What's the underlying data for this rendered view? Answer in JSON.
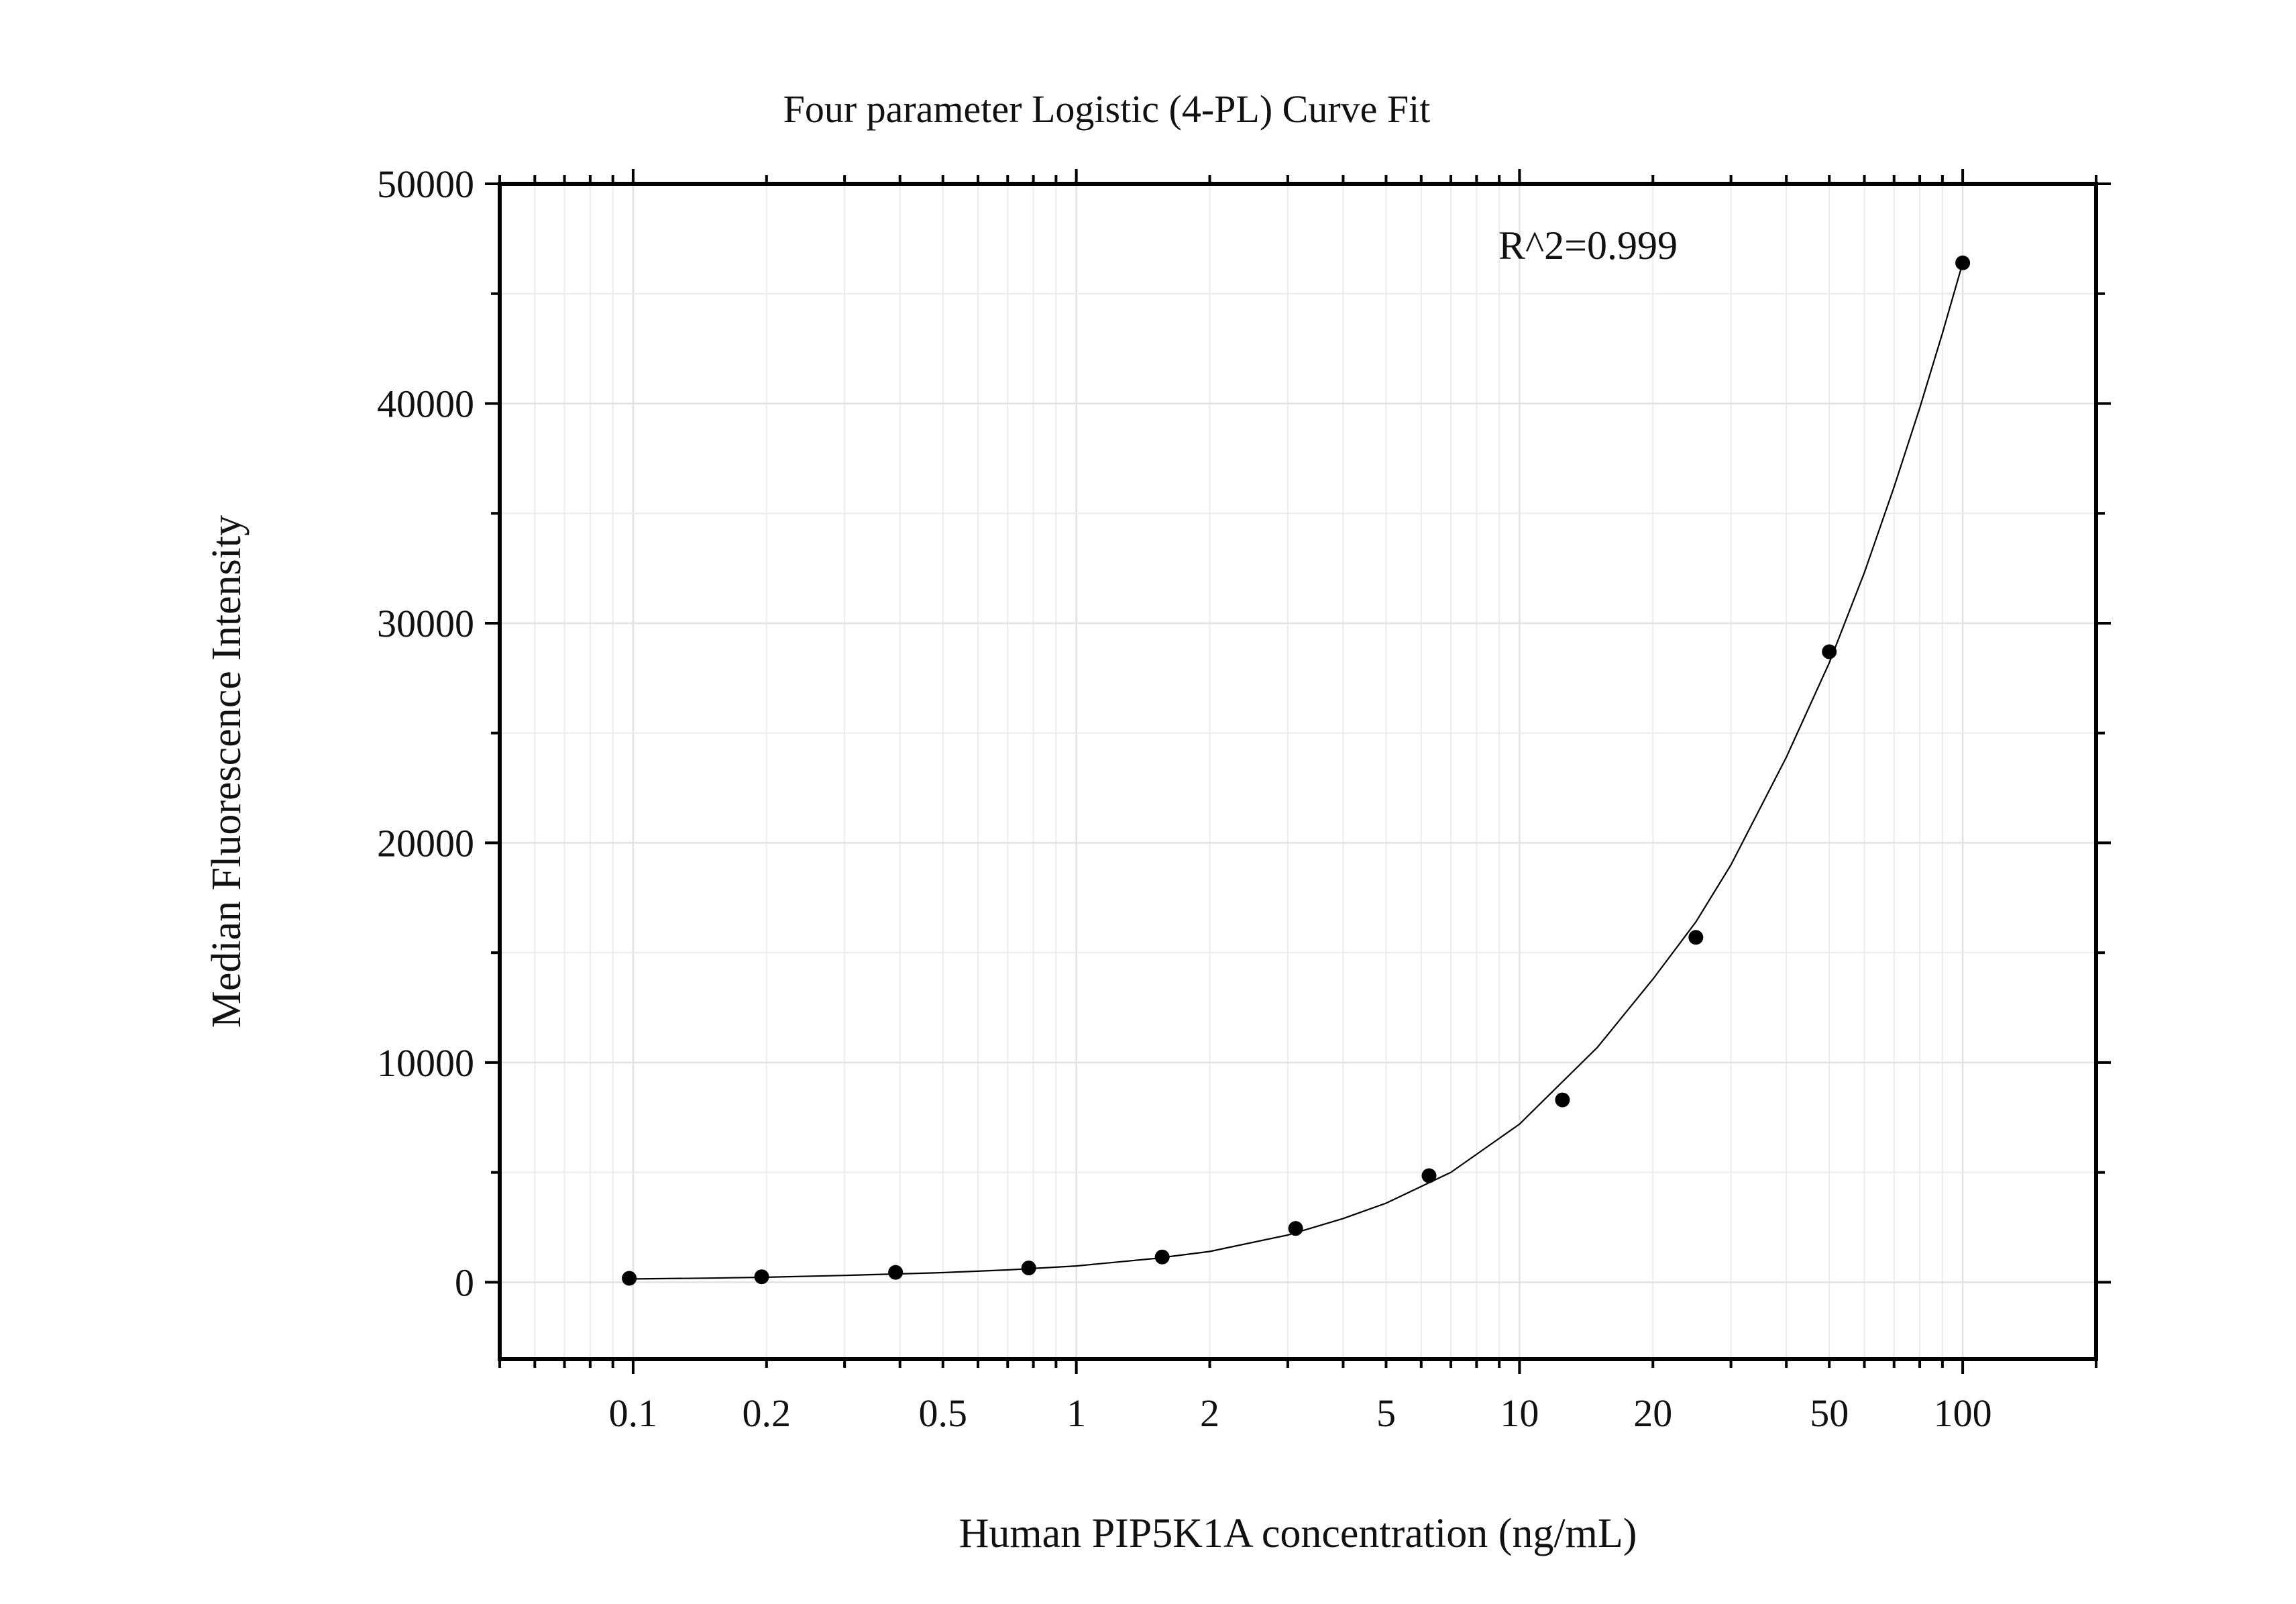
{
  "chart_data": {
    "type": "scatter",
    "title": "Four parameter Logistic (4-PL) Curve Fit",
    "xlabel": "Human PIP5K1A concentration (ng/mL)",
    "ylabel": "Median Fluorescence Intensity",
    "annotation": "R^2=0.999",
    "x_scale": "log",
    "xlim": [
      0.05,
      200
    ],
    "ylim": [
      -3500,
      50000
    ],
    "x_ticks": [
      0.1,
      0.2,
      0.5,
      1,
      2,
      5,
      10,
      20,
      50,
      100
    ],
    "x_tick_labels": [
      "0.1",
      "0.2",
      "0.5",
      "1",
      "2",
      "5",
      "10",
      "20",
      "50",
      "100"
    ],
    "y_ticks": [
      0,
      10000,
      20000,
      30000,
      40000,
      50000
    ],
    "y_tick_labels": [
      "0",
      "10000",
      "20000",
      "30000",
      "40000",
      "50000"
    ],
    "grid": true,
    "series": [
      {
        "type": "scatter",
        "x": [
          0.098,
          0.195,
          0.391,
          0.781,
          1.5625,
          3.125,
          6.25,
          12.5,
          25,
          50,
          100
        ],
        "y": [
          180,
          250,
          450,
          650,
          1150,
          2450,
          4850,
          8300,
          15700,
          28700,
          46400
        ]
      },
      {
        "type": "line",
        "x": [
          0.098,
          0.15,
          0.2,
          0.3,
          0.4,
          0.5,
          0.7,
          1,
          1.5,
          2,
          3,
          4,
          5,
          7,
          10,
          15,
          20,
          25,
          30,
          40,
          50,
          60,
          70,
          80,
          90,
          100
        ],
        "y": [
          150,
          190,
          230,
          310,
          380,
          440,
          560,
          740,
          1080,
          1400,
          2150,
          2900,
          3600,
          5000,
          7200,
          10700,
          13800,
          16400,
          19000,
          23900,
          28200,
          32300,
          36200,
          39800,
          43200,
          46400
        ]
      }
    ]
  }
}
